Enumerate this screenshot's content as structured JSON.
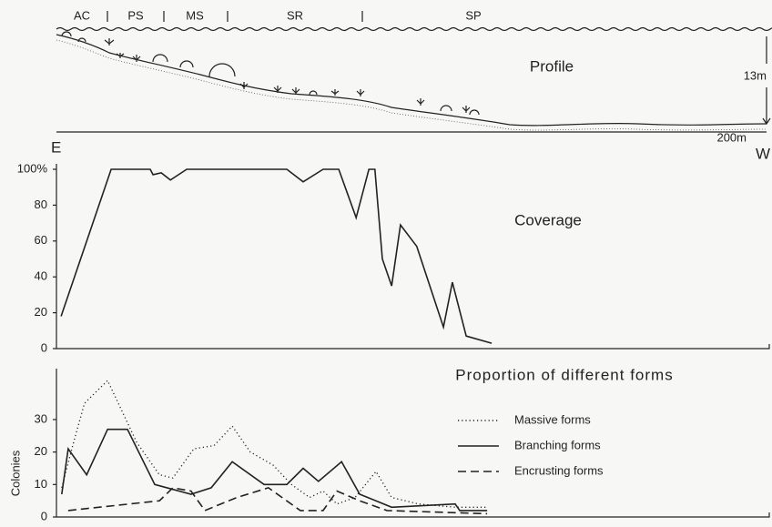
{
  "profile": {
    "zones": [
      "AC",
      "PS",
      "MS",
      "SR",
      "SP"
    ],
    "title": "Profile",
    "depth": "13m",
    "distance": "200m",
    "left_end": "E",
    "right_end": "W"
  },
  "chart_data": [
    {
      "type": "line",
      "title": "Coverage",
      "color": "#222",
      "style": "solid",
      "x": [
        1.3,
        15.4,
        26.4,
        27.2,
        29.5,
        32.1,
        36.7,
        64.9,
        69.5,
        75.1,
        79.5,
        84.4,
        88,
        89.7,
        91.8,
        94.4,
        96.9,
        101.5,
        109,
        111.5,
        115.4,
        122.6
      ],
      "values": [
        18,
        100,
        100,
        97,
        98,
        94,
        100,
        100,
        93,
        100,
        100,
        73,
        100,
        100,
        50,
        35,
        69,
        57,
        12,
        37,
        7,
        3
      ],
      "xlim": [
        0,
        200
      ],
      "ylim": [
        0,
        100
      ],
      "yticks": [
        0,
        20,
        40,
        60,
        80,
        {
          "value": 100,
          "label": "100%"
        }
      ]
    },
    {
      "type": "line",
      "title": "Proportion of different forms",
      "y_label": "Colonies",
      "xlim": [
        0,
        200
      ],
      "ylim": [
        0,
        44
      ],
      "yticks": [
        0,
        10,
        20,
        30
      ],
      "series": [
        {
          "name": "Massive forms",
          "color": "#222",
          "style": "dotted",
          "x": [
            1.5,
            4.6,
            7.9,
            14.4,
            22.6,
            29,
            32.8,
            38.7,
            44.4,
            49.5,
            54.6,
            61,
            66.2,
            71.3,
            75.1,
            79,
            84.1,
            90,
            94.4,
            102,
            112.3,
            121.3
          ],
          "values": [
            9,
            22,
            35,
            42,
            23,
            13,
            12,
            21,
            22,
            28,
            20,
            16,
            10,
            6,
            8,
            4,
            6,
            14,
            6,
            4,
            3,
            3
          ]
        },
        {
          "name": "Branching forms",
          "color": "#222",
          "style": "solid",
          "x": [
            1.5,
            3.3,
            8.5,
            14.4,
            20,
            27.7,
            37.9,
            43.6,
            49.5,
            58.5,
            64.9,
            69.5,
            73.8,
            80.3,
            85.4,
            90,
            94.4,
            112.3,
            113.6,
            121.3
          ],
          "values": [
            7,
            21,
            13,
            27,
            27,
            10,
            7,
            9,
            17,
            10,
            10,
            15,
            11,
            17,
            7,
            5,
            3,
            4,
            2,
            2
          ]
        },
        {
          "name": "Encrusting forms",
          "color": "#222",
          "style": "dashed",
          "x": [
            3.3,
            29,
            32.8,
            37.9,
            41.8,
            50.8,
            59.7,
            68.7,
            75.1,
            79,
            85.4,
            93.1,
            121.3
          ],
          "values": [
            2,
            5,
            9,
            8,
            2,
            6,
            9,
            2,
            2,
            8,
            5,
            2,
            1
          ]
        }
      ]
    }
  ]
}
